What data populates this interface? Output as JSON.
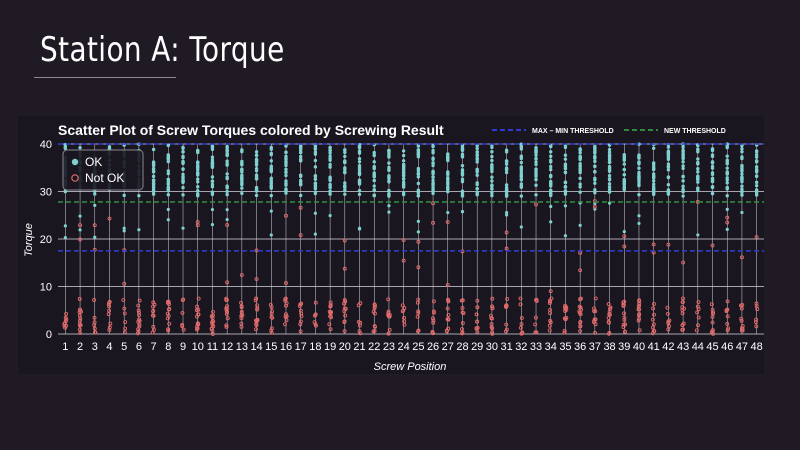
{
  "page": {
    "title": "Station A: Torque"
  },
  "chart_data": {
    "type": "scatter",
    "title": "Scatter Plot of Screw Torques colored by Screwing Result",
    "xlabel": "Screw Position",
    "ylabel": "Torque",
    "ylim": [
      0,
      40
    ],
    "yticks": [
      0,
      10,
      20,
      30,
      40
    ],
    "x": [
      1,
      2,
      3,
      4,
      5,
      6,
      7,
      8,
      9,
      10,
      11,
      12,
      13,
      14,
      15,
      16,
      17,
      18,
      19,
      20,
      21,
      22,
      23,
      24,
      25,
      26,
      27,
      28,
      29,
      30,
      31,
      32,
      33,
      34,
      35,
      36,
      37,
      38,
      39,
      40,
      41,
      42,
      43,
      44,
      45,
      46,
      47,
      48
    ],
    "grid": true,
    "series": [
      {
        "name": "OK",
        "color": "#7fd1cf",
        "description": "dense column of points between ~28 and 40 at every screw position, with sparse outliers down to ~20"
      },
      {
        "name": "Not OK",
        "color": "#e06a6a",
        "description": "points mostly between 0 and 8 at every screw position, with sparse outliers between ~9 and ~28"
      }
    ],
    "reference_lines": [
      {
        "name": "MAX – MIN THRESHOLD",
        "style": "dashed",
        "color": "#2f3bd6",
        "values": [
          40,
          17.5
        ]
      },
      {
        "name": "NEW THRESHOLD",
        "style": "dashed",
        "color": "#2e8b3e",
        "values": [
          27.8
        ]
      }
    ],
    "legend_placement": "top-left"
  }
}
